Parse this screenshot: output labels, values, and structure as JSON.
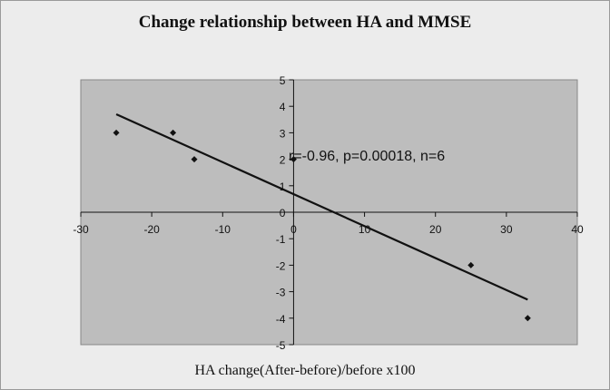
{
  "chart_data": {
    "type": "scatter",
    "title": "Change relationship between HA and MMSE",
    "xlabel": "HA change(After-before)/before  x100",
    "ylabel": "",
    "xlim": [
      -30,
      40
    ],
    "ylim": [
      -5,
      5
    ],
    "xticks": [
      -30,
      -20,
      -10,
      0,
      10,
      20,
      30,
      40
    ],
    "yticks": [
      5,
      4,
      3,
      2,
      1,
      0,
      -1,
      -2,
      -3,
      -4,
      -5
    ],
    "points": [
      {
        "x": -25,
        "y": 3
      },
      {
        "x": -17,
        "y": 3
      },
      {
        "x": -14,
        "y": 2
      },
      {
        "x": 0,
        "y": 2
      },
      {
        "x": 25,
        "y": -2
      },
      {
        "x": 33,
        "y": -4
      }
    ],
    "trendline": {
      "x1": -25,
      "y1": 3.7,
      "x2": 33,
      "y2": -3.3
    },
    "annotation": "r=-0.96, p=0.00018, n=6",
    "plot_background": "#bdbdbd",
    "grid": false,
    "legend": "none"
  }
}
